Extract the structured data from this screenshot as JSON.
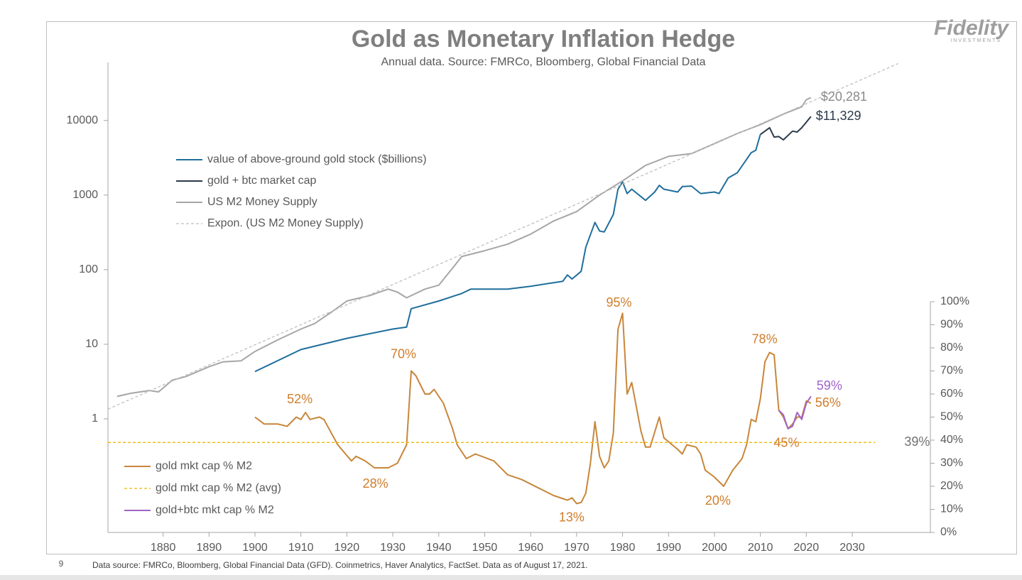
{
  "chart_data": {
    "type": "line",
    "title": "Gold as Monetary Inflation Hedge",
    "subtitle": "Annual data.  Source: FMRCo, Bloomberg, Global Financial Data",
    "logo": {
      "name": "Fidelity",
      "tagline": "INVESTMENTS"
    },
    "page_number": "9",
    "footnote": "Data source: FMRCo, Bloomberg, Global Financial Data (GFD). Coinmetrics, Haver Analytics, FactSet.  Data as of August 17, 2021.",
    "log_y": true,
    "xlim": [
      1868,
      2047
    ],
    "xticks": [
      1880,
      1890,
      1900,
      1910,
      1920,
      1930,
      1940,
      1950,
      1960,
      1970,
      1980,
      1990,
      2000,
      2010,
      2020,
      2030
    ],
    "ylim": [
      0.03,
      60000
    ],
    "yticks": [
      1,
      10,
      100,
      1000,
      10000
    ],
    "y2lim": [
      0,
      100
    ],
    "y2ticks": [
      {
        "value": 0,
        "label": "0%"
      },
      {
        "value": 10,
        "label": "10%"
      },
      {
        "value": 20,
        "label": "20%"
      },
      {
        "value": 30,
        "label": "30%"
      },
      {
        "value": 40,
        "label": "40%"
      },
      {
        "value": 50,
        "label": "50%"
      },
      {
        "value": 60,
        "label": "60%"
      },
      {
        "value": 70,
        "label": "70%"
      },
      {
        "value": 80,
        "label": "80%"
      },
      {
        "value": 90,
        "label": "90%"
      },
      {
        "value": 100,
        "label": "100%"
      }
    ],
    "series": [
      {
        "name": "value of above-ground gold stock ($billions)",
        "color": "#1f6e9c",
        "x": [
          1900,
          1910,
          1920,
          1930,
          1933,
          1934,
          1940,
          1945,
          1947,
          1955,
          1960,
          1967,
          1968,
          1969,
          1971,
          1972,
          1974,
          1975,
          1976,
          1978,
          1979,
          1980,
          1981,
          1982,
          1985,
          1987,
          1988,
          1989,
          1992,
          1993,
          1995,
          1997,
          2000,
          2001,
          2003,
          2005,
          2008,
          2009,
          2010
        ],
        "values": [
          4.3,
          8.5,
          12,
          16,
          17,
          30,
          38,
          48,
          55,
          55,
          60,
          70,
          85,
          75,
          95,
          200,
          430,
          330,
          320,
          550,
          1200,
          1500,
          1050,
          1200,
          850,
          1100,
          1350,
          1200,
          1100,
          1300,
          1320,
          1050,
          1100,
          1050,
          1700,
          2000,
          3700,
          4000,
          6500
        ]
      },
      {
        "name": "gold + btc market cap",
        "color": "#2b3a4a",
        "x": [
          2010,
          2011,
          2012,
          2013,
          2014,
          2015,
          2016,
          2017,
          2018,
          2019,
          2020,
          2021
        ],
        "values": [
          6500,
          7200,
          8000,
          6000,
          6100,
          5500,
          6300,
          7200,
          7000,
          8000,
          9500,
          11329
        ]
      },
      {
        "name": "US M2 Money Supply",
        "color": "#a6a6a6",
        "x": [
          1870,
          1873,
          1877,
          1879,
          1882,
          1885,
          1890,
          1893,
          1897,
          1900,
          1905,
          1910,
          1913,
          1917,
          1920,
          1925,
          1929,
          1931,
          1933,
          1937,
          1940,
          1943,
          1945,
          1950,
          1955,
          1960,
          1965,
          1970,
          1975,
          1980,
          1985,
          1990,
          1995,
          2000,
          2005,
          2010,
          2015,
          2019,
          2020,
          2021
        ],
        "values": [
          2.0,
          2.2,
          2.4,
          2.3,
          3.3,
          3.7,
          5.0,
          5.8,
          6.0,
          8.0,
          11.5,
          16,
          19,
          28,
          38,
          45,
          55,
          50,
          42,
          55,
          62,
          105,
          150,
          180,
          220,
          300,
          450,
          600,
          1000,
          1550,
          2500,
          3300,
          3600,
          4900,
          6700,
          8800,
          12200,
          15300,
          19000,
          20281
        ]
      },
      {
        "name": "Expon. (US M2 Money Supply)",
        "color": "#bfbfbf",
        "dash": true,
        "x": [
          1868,
          2040
        ],
        "values": [
          1.35,
          58000
        ]
      },
      {
        "name": "gold mkt cap % M2",
        "color": "#c8863a",
        "axis": "y2",
        "x": [
          1900,
          1902,
          1905,
          1907,
          1909,
          1910,
          1911,
          1912,
          1914,
          1915,
          1918,
          1921,
          1922,
          1924,
          1926,
          1929,
          1931,
          1933,
          1934,
          1935,
          1937,
          1938,
          1939,
          1941,
          1943,
          1944,
          1946,
          1948,
          1952,
          1955,
          1958,
          1962,
          1965,
          1968,
          1969,
          1970,
          1971,
          1972,
          1973,
          1974,
          1975,
          1976,
          1977,
          1978,
          1979,
          1980,
          1981,
          1982,
          1984,
          1985,
          1986,
          1988,
          1989,
          1992,
          1993,
          1994,
          1996,
          1997,
          1998,
          2000,
          2002,
          2004,
          2006,
          2007,
          2008,
          2009,
          2010,
          2011,
          2012,
          2013,
          2014,
          2015,
          2016,
          2017,
          2018,
          2019,
          2020,
          2021
        ],
        "values": [
          50,
          47,
          47,
          46,
          50,
          49,
          52,
          49,
          50,
          49,
          38,
          31,
          33,
          31,
          28,
          28,
          30,
          38,
          70,
          68,
          60,
          60,
          62,
          56,
          45,
          38,
          32,
          34,
          31,
          25,
          23,
          19,
          16,
          14,
          15,
          12.5,
          13,
          17,
          30,
          48,
          33,
          28,
          31,
          43,
          88,
          95,
          60,
          65,
          44,
          37,
          37,
          50,
          41,
          36,
          34,
          38,
          37,
          34,
          27,
          24,
          20,
          27,
          32,
          38,
          49,
          48,
          58,
          74,
          78,
          77,
          53,
          50,
          45,
          47,
          50,
          50,
          57,
          56
        ]
      },
      {
        "name": "gold mkt cap % M2 (avg)",
        "color": "#f0b800",
        "dash": true,
        "axis": "y2",
        "x": [
          1868,
          2035
        ],
        "values": [
          39,
          39
        ]
      },
      {
        "name": "gold+btc mkt cap % M2",
        "color": "#a064c8",
        "axis": "y2",
        "x": [
          2014,
          2015,
          2016,
          2017,
          2018,
          2019,
          2020,
          2021
        ],
        "values": [
          53,
          51,
          45,
          46,
          52,
          49,
          56,
          59
        ]
      }
    ],
    "annotations": [
      {
        "label": "52%",
        "x": 1911,
        "value": 52,
        "axis": "y2",
        "color": "#d07d2c"
      },
      {
        "label": "70%",
        "x": 1934,
        "value": 70,
        "axis": "y2",
        "color": "#d07d2c"
      },
      {
        "label": "28%",
        "x": 1927,
        "value": 28,
        "axis": "y2",
        "color": "#d07d2c"
      },
      {
        "label": "13%",
        "x": 1970,
        "value": 13,
        "axis": "y2",
        "color": "#d07d2c"
      },
      {
        "label": "95%",
        "x": 1980,
        "value": 95,
        "axis": "y2",
        "color": "#d07d2c"
      },
      {
        "label": "20%",
        "x": 2002,
        "value": 20,
        "axis": "y2",
        "color": "#d07d2c"
      },
      {
        "label": "78%",
        "x": 2012,
        "value": 78,
        "axis": "y2",
        "color": "#d07d2c"
      },
      {
        "label": "45%",
        "x": 2016,
        "value": 45,
        "axis": "y2",
        "color": "#d07d2c"
      },
      {
        "label": "59%",
        "x": 2021,
        "value": 59,
        "axis": "y2",
        "color": "#a064c8"
      },
      {
        "label": "56%",
        "x": 2021,
        "value": 56,
        "axis": "y2",
        "color": "#d07d2c"
      },
      {
        "label": "39%",
        "x": 2035,
        "value": 39,
        "axis": "y2",
        "color": "#707070"
      },
      {
        "label": "$20,281",
        "x": 2021,
        "value": 20281,
        "color": "#8a8a8a"
      },
      {
        "label": "$11,329",
        "x": 2021,
        "value": 11329,
        "color": "#2b3a4a"
      }
    ]
  }
}
